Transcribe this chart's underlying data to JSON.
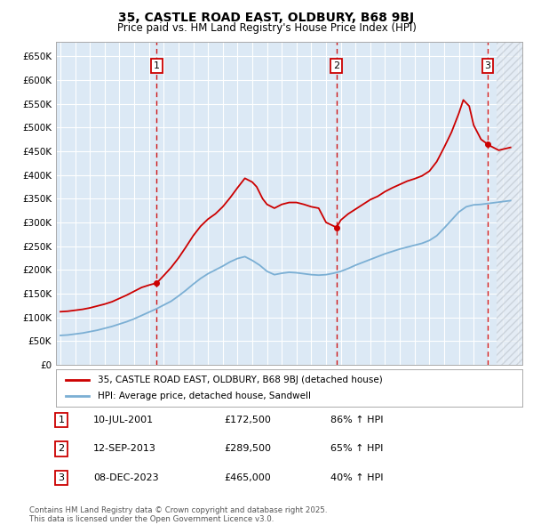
{
  "title": "35, CASTLE ROAD EAST, OLDBURY, B68 9BJ",
  "subtitle": "Price paid vs. HM Land Registry's House Price Index (HPI)",
  "ylim": [
    0,
    680000
  ],
  "yticks": [
    0,
    50000,
    100000,
    150000,
    200000,
    250000,
    300000,
    350000,
    400000,
    450000,
    500000,
    550000,
    600000,
    650000
  ],
  "ytick_labels": [
    "£0",
    "£50K",
    "£100K",
    "£150K",
    "£200K",
    "£250K",
    "£300K",
    "£350K",
    "£400K",
    "£450K",
    "£500K",
    "£550K",
    "£600K",
    "£650K"
  ],
  "xlim_start": 1994.7,
  "xlim_end": 2026.3,
  "background_color": "#ffffff",
  "plot_bg_color": "#dce9f5",
  "grid_color": "#ffffff",
  "red_color": "#cc0000",
  "blue_color": "#7bafd4",
  "sale_dates_year": [
    2001.53,
    2013.71,
    2023.94
  ],
  "sale_prices": [
    172500,
    289500,
    465000
  ],
  "sale_labels": [
    "1",
    "2",
    "3"
  ],
  "sale_dates_str": [
    "10-JUL-2001",
    "12-SEP-2013",
    "08-DEC-2023"
  ],
  "sale_prices_str": [
    "£172,500",
    "£289,500",
    "£465,000"
  ],
  "sale_hpi_str": [
    "86% ↑ HPI",
    "65% ↑ HPI",
    "40% ↑ HPI"
  ],
  "legend_label_red": "35, CASTLE ROAD EAST, OLDBURY, B68 9BJ (detached house)",
  "legend_label_blue": "HPI: Average price, detached house, Sandwell",
  "footer": "Contains HM Land Registry data © Crown copyright and database right 2025.\nThis data is licensed under the Open Government Licence v3.0.",
  "red_years": [
    1995,
    1995.5,
    1996,
    1996.5,
    1997,
    1997.5,
    1998,
    1998.5,
    1999,
    1999.5,
    2000,
    2000.5,
    2001,
    2001.53,
    2002,
    2002.5,
    2003,
    2003.5,
    2004,
    2004.5,
    2005,
    2005.5,
    2006,
    2006.5,
    2007,
    2007.5,
    2008,
    2008.3,
    2008.7,
    2009,
    2009.5,
    2010,
    2010.5,
    2011,
    2011.5,
    2012,
    2012.5,
    2013,
    2013.71,
    2014,
    2014.5,
    2015,
    2015.5,
    2016,
    2016.5,
    2017,
    2017.5,
    2018,
    2018.5,
    2019,
    2019.5,
    2020,
    2020.5,
    2021,
    2021.5,
    2022,
    2022.3,
    2022.7,
    2023,
    2023.5,
    2023.94,
    2024.2,
    2024.7,
    2025.5
  ],
  "red_prices": [
    112000,
    113000,
    115000,
    117000,
    120000,
    124000,
    128000,
    133000,
    140000,
    147000,
    155000,
    163000,
    168000,
    172500,
    188000,
    205000,
    225000,
    248000,
    272000,
    292000,
    307000,
    318000,
    333000,
    352000,
    373000,
    393000,
    385000,
    375000,
    350000,
    338000,
    330000,
    338000,
    342000,
    342000,
    338000,
    333000,
    330000,
    300000,
    289500,
    305000,
    318000,
    328000,
    338000,
    348000,
    355000,
    365000,
    373000,
    380000,
    387000,
    392000,
    398000,
    408000,
    428000,
    458000,
    490000,
    530000,
    558000,
    545000,
    505000,
    475000,
    465000,
    460000,
    452000,
    458000
  ],
  "blue_years": [
    1995,
    1995.5,
    1996,
    1996.5,
    1997,
    1997.5,
    1998,
    1998.5,
    1999,
    1999.5,
    2000,
    2000.5,
    2001,
    2001.5,
    2002,
    2002.5,
    2003,
    2003.5,
    2004,
    2004.5,
    2005,
    2005.5,
    2006,
    2006.5,
    2007,
    2007.5,
    2008,
    2008.5,
    2009,
    2009.5,
    2010,
    2010.5,
    2011,
    2011.5,
    2012,
    2012.5,
    2013,
    2013.5,
    2014,
    2014.5,
    2015,
    2015.5,
    2016,
    2016.5,
    2017,
    2017.5,
    2018,
    2018.5,
    2019,
    2019.5,
    2020,
    2020.5,
    2021,
    2021.5,
    2022,
    2022.5,
    2023,
    2023.5,
    2024,
    2024.5,
    2025,
    2025.5
  ],
  "blue_prices": [
    62000,
    63000,
    65000,
    67000,
    70000,
    73000,
    77000,
    81000,
    86000,
    91000,
    97000,
    104000,
    111000,
    118000,
    126000,
    134000,
    145000,
    157000,
    170000,
    182000,
    192000,
    200000,
    208000,
    217000,
    224000,
    228000,
    220000,
    210000,
    197000,
    190000,
    193000,
    195000,
    194000,
    192000,
    190000,
    189000,
    190000,
    193000,
    197000,
    203000,
    210000,
    216000,
    222000,
    228000,
    234000,
    239000,
    244000,
    248000,
    252000,
    256000,
    262000,
    272000,
    288000,
    305000,
    322000,
    333000,
    337000,
    338000,
    340000,
    342000,
    344000,
    346000
  ]
}
